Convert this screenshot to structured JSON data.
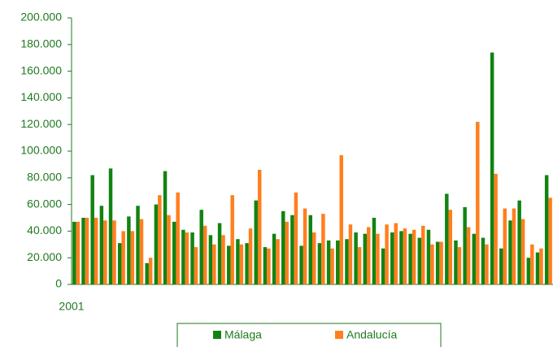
{
  "chart_data": {
    "type": "bar",
    "categories": [
      "2001",
      null,
      null,
      null,
      null,
      null,
      null,
      null,
      null,
      null,
      null,
      null,
      null,
      null,
      null,
      null,
      null,
      null,
      null,
      null,
      null,
      null,
      null,
      null,
      null,
      null,
      null,
      null,
      null,
      null,
      null,
      null,
      null,
      null,
      null,
      null,
      null,
      null,
      null,
      null,
      null,
      null,
      null,
      null,
      null,
      null,
      null,
      null,
      null,
      null,
      null,
      null,
      null
    ],
    "series": [
      {
        "name": "Málaga",
        "color": "#128312",
        "values": [
          47000,
          50000,
          82000,
          59000,
          87000,
          31000,
          51000,
          59000,
          16000,
          60000,
          85000,
          47000,
          41000,
          39000,
          56000,
          37000,
          46000,
          29000,
          34000,
          31000,
          63000,
          28000,
          38000,
          55000,
          52000,
          29000,
          52000,
          31000,
          33000,
          33000,
          34000,
          39000,
          38000,
          50000,
          27000,
          39000,
          40000,
          38000,
          35000,
          41000,
          32000,
          68000,
          33000,
          58000,
          38000,
          35000,
          174000,
          27000,
          48000,
          63000,
          20000,
          24000,
          82000
        ]
      },
      {
        "name": "Andalucía",
        "color": "#ff7f1e",
        "values": [
          47000,
          50000,
          50000,
          48000,
          48000,
          40000,
          40000,
          49000,
          20000,
          67000,
          52000,
          69000,
          39000,
          28000,
          44000,
          30000,
          37000,
          67000,
          30000,
          42000,
          86000,
          27000,
          34000,
          47000,
          69000,
          57000,
          39000,
          53000,
          27000,
          97000,
          45000,
          28000,
          43000,
          38000,
          45000,
          46000,
          42000,
          41000,
          44000,
          30000,
          32000,
          56000,
          28000,
          43000,
          122000,
          30000,
          83000,
          57000,
          57000,
          49000,
          30000,
          27000,
          65000
        ]
      }
    ],
    "ylim": [
      0,
      200000
    ],
    "yticks": [
      0,
      {
        "value": 20000,
        "label": "20.000"
      },
      {
        "value": 40000,
        "label": "40.000"
      },
      {
        "value": 60000,
        "label": "60.000"
      },
      {
        "value": 80000,
        "label": "80.000"
      },
      {
        "value": 100000,
        "label": "100.000"
      },
      {
        "value": 120000,
        "label": "120.000"
      },
      {
        "value": 140000,
        "label": "140.000"
      },
      {
        "value": 160000,
        "label": "160.000"
      },
      {
        "value": 180000,
        "label": "180.000"
      },
      {
        "value": 200000,
        "label": "200.000"
      }
    ],
    "grid": false
  }
}
